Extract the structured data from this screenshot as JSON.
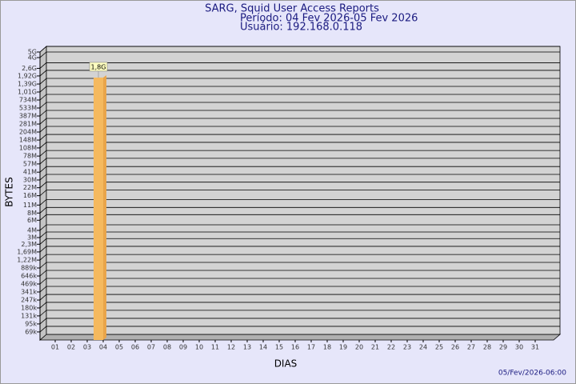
{
  "chart_data": {
    "type": "bar",
    "title": "SARG, Squid User Access Reports",
    "subtitle": "Período: 04 Fev 2026-05 Fev 2026",
    "user": "Usuário: 192.168.0.118",
    "x_label": "DIAS",
    "y_label": "BYTES",
    "timestamp": "05/Fev/2026-06:00",
    "categories": [
      "01",
      "02",
      "03",
      "04",
      "05",
      "06",
      "07",
      "08",
      "09",
      "10",
      "11",
      "12",
      "13",
      "14",
      "15",
      "16",
      "17",
      "18",
      "19",
      "20",
      "21",
      "22",
      "23",
      "24",
      "25",
      "26",
      "27",
      "28",
      "29",
      "30",
      "31"
    ],
    "values": [
      null,
      null,
      null,
      1800000000,
      null,
      null,
      null,
      null,
      null,
      null,
      null,
      null,
      null,
      null,
      null,
      null,
      null,
      null,
      null,
      null,
      null,
      null,
      null,
      null,
      null,
      null,
      null,
      null,
      null,
      null,
      null
    ],
    "value_labels": [
      null,
      null,
      null,
      "1,8G",
      null,
      null,
      null,
      null,
      null,
      null,
      null,
      null,
      null,
      null,
      null,
      null,
      null,
      null,
      null,
      null,
      null,
      null,
      null,
      null,
      null,
      null,
      null,
      null,
      null,
      null,
      null
    ],
    "color": "#f5b95e",
    "log_scale": true,
    "grid": true,
    "ylim": [
      50000,
      5000000000
    ],
    "yticks": [
      {
        "value": 69000,
        "label": "69k"
      },
      {
        "value": 95000,
        "label": "95k"
      },
      {
        "value": 131000,
        "label": "131k"
      },
      {
        "value": 180000,
        "label": "180k"
      },
      {
        "value": 247000,
        "label": "247k"
      },
      {
        "value": 341000,
        "label": "341k"
      },
      {
        "value": 469000,
        "label": "469k"
      },
      {
        "value": 646000,
        "label": "646k"
      },
      {
        "value": 889000,
        "label": "889k"
      },
      {
        "value": 1220000,
        "label": "1,22M"
      },
      {
        "value": 1690000,
        "label": "1,69M"
      },
      {
        "value": 2300000,
        "label": "2,3M"
      },
      {
        "value": 3000000,
        "label": "3M"
      },
      {
        "value": 4000000,
        "label": "4M"
      },
      {
        "value": 6000000,
        "label": "6M"
      },
      {
        "value": 8000000,
        "label": "8M"
      },
      {
        "value": 11000000,
        "label": "11M"
      },
      {
        "value": 16000000,
        "label": "16M"
      },
      {
        "value": 22000000,
        "label": "22M"
      },
      {
        "value": 30000000,
        "label": "30M"
      },
      {
        "value": 41000000,
        "label": "41M"
      },
      {
        "value": 57000000,
        "label": "57M"
      },
      {
        "value": 78000000,
        "label": "78M"
      },
      {
        "value": 108000000,
        "label": "108M"
      },
      {
        "value": 148000000,
        "label": "148M"
      },
      {
        "value": 204000000,
        "label": "204M"
      },
      {
        "value": 281000000,
        "label": "281M"
      },
      {
        "value": 387000000,
        "label": "387M"
      },
      {
        "value": 533000000,
        "label": "533M"
      },
      {
        "value": 734000000,
        "label": "734M"
      },
      {
        "value": 1010000000,
        "label": "1,01G"
      },
      {
        "value": 1390000000,
        "label": "1,39G"
      },
      {
        "value": 1920000000,
        "label": "1,92G"
      },
      {
        "value": 2600000000,
        "label": "2,6G"
      },
      {
        "value": 4000000000,
        "label": "4G"
      },
      {
        "value": 5000000000,
        "label": "5G"
      }
    ]
  }
}
